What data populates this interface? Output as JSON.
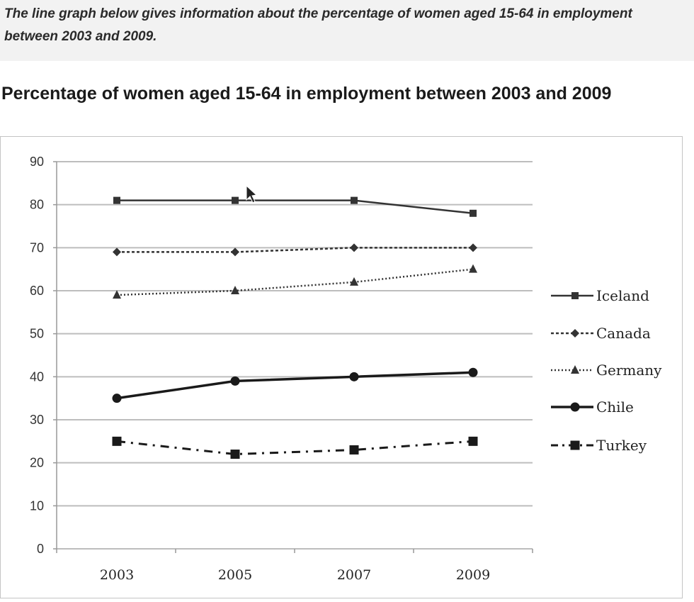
{
  "prompt": {
    "text": "The line graph below gives information about the percentage of women aged 15-64 in employment between 2003 and 2009."
  },
  "chart_data": {
    "type": "line",
    "title": "Percentage of women aged 15-64 in employment between 2003 and 2009",
    "xlabel": "",
    "ylabel": "",
    "x": [
      "2003",
      "2005",
      "2007",
      "2009"
    ],
    "ylim": [
      0,
      90
    ],
    "yticks": [
      0,
      10,
      20,
      30,
      40,
      50,
      60,
      70,
      80,
      90
    ],
    "grid": true,
    "legend": "right",
    "series": [
      {
        "name": "Iceland",
        "values": [
          81,
          81,
          81,
          78
        ],
        "style": "solid",
        "marker": "square",
        "color": "#333333"
      },
      {
        "name": "Canada",
        "values": [
          69,
          69,
          70,
          70
        ],
        "style": "dashed",
        "marker": "diamond",
        "color": "#333333"
      },
      {
        "name": "Germany",
        "values": [
          59,
          60,
          62,
          65
        ],
        "style": "dotted",
        "marker": "triangle",
        "color": "#333333"
      },
      {
        "name": "Chile",
        "values": [
          35,
          39,
          40,
          41
        ],
        "style": "solid-thick",
        "marker": "circle",
        "color": "#1a1a1a"
      },
      {
        "name": "Turkey",
        "values": [
          25,
          22,
          23,
          25
        ],
        "style": "dashdot",
        "marker": "square-large",
        "color": "#1a1a1a"
      }
    ]
  }
}
